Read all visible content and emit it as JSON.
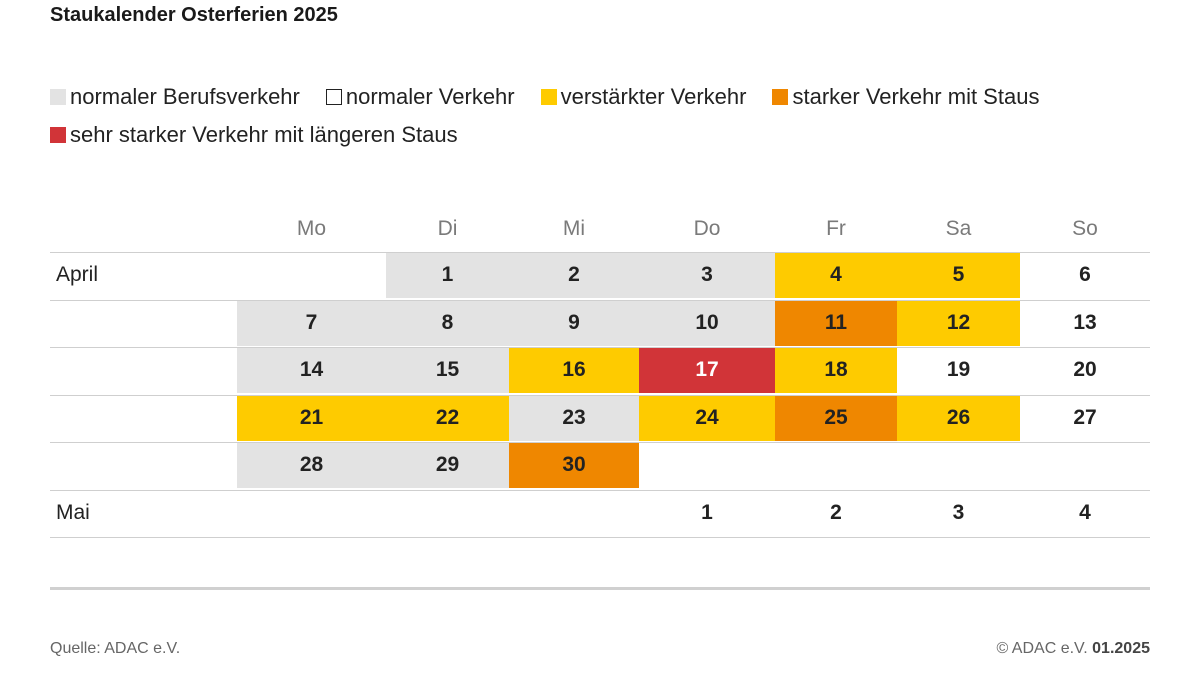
{
  "title": "Staukalender Osterferien 2025",
  "legend": [
    {
      "key": "berufsverkehr",
      "label": "normaler Berufsverkehr",
      "color": "#e3e3e3",
      "outlined": false
    },
    {
      "key": "normal",
      "label": "normaler Verkehr",
      "color": "#ffffff",
      "outlined": true
    },
    {
      "key": "verstaerkt",
      "label": "verstärkter Verkehr",
      "color": "#fecb00",
      "outlined": false
    },
    {
      "key": "stark",
      "label": "starker Verkehr mit Staus",
      "color": "#ef8700",
      "outlined": false
    },
    {
      "key": "sehr_stark",
      "label": "sehr starker Verkehr mit längeren Staus",
      "color": "#d13438",
      "outlined": false
    }
  ],
  "chart_data": {
    "type": "table",
    "title": "Staukalender Osterferien 2025",
    "columns": [
      "Mo",
      "Di",
      "Mi",
      "Do",
      "Fr",
      "Sa",
      "So"
    ],
    "rows": [
      {
        "month": "April",
        "cells": [
          null,
          {
            "day": "1",
            "level": "berufsverkehr"
          },
          {
            "day": "2",
            "level": "berufsverkehr"
          },
          {
            "day": "3",
            "level": "berufsverkehr"
          },
          {
            "day": "4",
            "level": "verstaerkt"
          },
          {
            "day": "5",
            "level": "verstaerkt"
          },
          {
            "day": "6",
            "level": "normal"
          }
        ]
      },
      {
        "month": "",
        "cells": [
          {
            "day": "7",
            "level": "berufsverkehr"
          },
          {
            "day": "8",
            "level": "berufsverkehr"
          },
          {
            "day": "9",
            "level": "berufsverkehr"
          },
          {
            "day": "10",
            "level": "berufsverkehr"
          },
          {
            "day": "11",
            "level": "stark"
          },
          {
            "day": "12",
            "level": "verstaerkt"
          },
          {
            "day": "13",
            "level": "normal"
          }
        ]
      },
      {
        "month": "",
        "cells": [
          {
            "day": "14",
            "level": "berufsverkehr"
          },
          {
            "day": "15",
            "level": "berufsverkehr"
          },
          {
            "day": "16",
            "level": "verstaerkt"
          },
          {
            "day": "17",
            "level": "sehr_stark"
          },
          {
            "day": "18",
            "level": "verstaerkt"
          },
          {
            "day": "19",
            "level": "normal"
          },
          {
            "day": "20",
            "level": "normal"
          }
        ]
      },
      {
        "month": "",
        "cells": [
          {
            "day": "21",
            "level": "verstaerkt"
          },
          {
            "day": "22",
            "level": "verstaerkt"
          },
          {
            "day": "23",
            "level": "berufsverkehr"
          },
          {
            "day": "24",
            "level": "verstaerkt"
          },
          {
            "day": "25",
            "level": "stark"
          },
          {
            "day": "26",
            "level": "verstaerkt"
          },
          {
            "day": "27",
            "level": "normal"
          }
        ]
      },
      {
        "month": "",
        "cells": [
          {
            "day": "28",
            "level": "berufsverkehr"
          },
          {
            "day": "29",
            "level": "berufsverkehr"
          },
          {
            "day": "30",
            "level": "stark"
          },
          null,
          null,
          null,
          null
        ]
      },
      {
        "month": "Mai",
        "cells": [
          null,
          null,
          null,
          {
            "day": "1",
            "level": "normal"
          },
          {
            "day": "2",
            "level": "normal"
          },
          {
            "day": "3",
            "level": "normal"
          },
          {
            "day": "4",
            "level": "normal"
          }
        ]
      }
    ]
  },
  "footer": {
    "source": "Quelle: ADAC e.V.",
    "copyright_prefix": "© ADAC e.V.",
    "copyright_date": "01.2025"
  }
}
